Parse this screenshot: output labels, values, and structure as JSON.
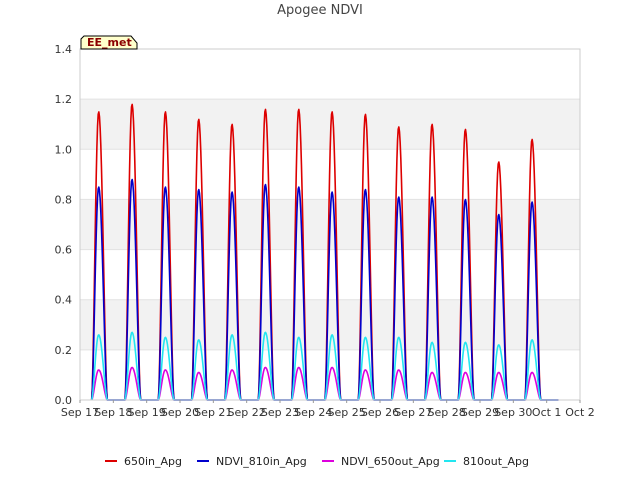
{
  "chart_data": {
    "type": "line",
    "title": "Apogee NDVI",
    "badge": "EE_met",
    "xlabel": "",
    "ylabel": "",
    "ylim": [
      0.0,
      1.4
    ],
    "yticks": [
      "0.0",
      "0.2",
      "0.4",
      "0.6",
      "0.8",
      "1.0",
      "1.2",
      "1.4"
    ],
    "xlim": [
      0,
      15
    ],
    "xticks": [
      "Sep 17",
      "Sep 18",
      "Sep 19",
      "Sep 20",
      "Sep 21",
      "Sep 22",
      "Sep 23",
      "Sep 24",
      "Sep 25",
      "Sep 26",
      "Sep 27",
      "Sep 28",
      "Sep 29",
      "Sep 30",
      "Oct 1",
      "Oct 2"
    ],
    "grid": "horizontal bands",
    "legend_position": "bottom",
    "series": [
      {
        "name": "650in_Apg",
        "color": "#dd0000",
        "daily_peaks": [
          1.15,
          1.18,
          1.15,
          1.12,
          1.1,
          1.16,
          1.16,
          1.15,
          1.14,
          1.09,
          1.1,
          1.08,
          0.95,
          1.04
        ]
      },
      {
        "name": "NDVI_810in_Apg",
        "color": "#0000cc",
        "daily_peaks": [
          0.85,
          0.88,
          0.85,
          0.84,
          0.83,
          0.86,
          0.85,
          0.83,
          0.84,
          0.81,
          0.81,
          0.8,
          0.74,
          0.79
        ]
      },
      {
        "name": "NDVI_650out_Apg",
        "color": "#dd00dd",
        "daily_peaks": [
          0.12,
          0.13,
          0.12,
          0.11,
          0.12,
          0.13,
          0.13,
          0.13,
          0.12,
          0.12,
          0.11,
          0.11,
          0.11,
          0.11
        ]
      },
      {
        "name": "810out_Apg",
        "color": "#22e6f0",
        "daily_peaks": [
          0.26,
          0.27,
          0.25,
          0.24,
          0.26,
          0.27,
          0.25,
          0.26,
          0.25,
          0.25,
          0.23,
          0.23,
          0.22,
          0.24
        ]
      }
    ]
  }
}
